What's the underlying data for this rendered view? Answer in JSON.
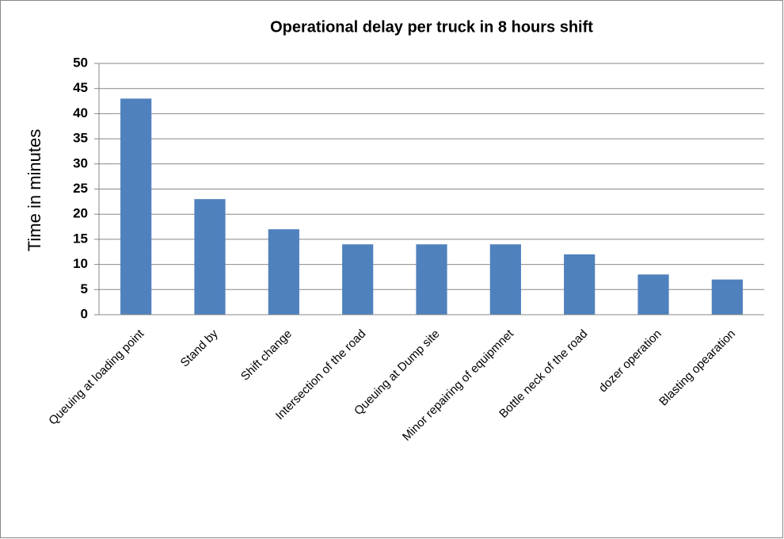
{
  "chart_data": {
    "type": "bar",
    "title": "Operational delay per truck in 8 hours shift",
    "y_label": "Time in minutes",
    "categories": [
      "Queuing at loading point",
      "Stand by",
      "Shift change",
      "Intersection of the road",
      "Queuing at Dump site",
      "Minor repairing of equipmnet",
      "Bottle neck of the road",
      "dozer operation",
      "Blasting opearation"
    ],
    "values": [
      43,
      23,
      17,
      14,
      14,
      14,
      12,
      8,
      7
    ],
    "color": "#4f81bd",
    "ylim": [
      0,
      50
    ],
    "yticks": [
      0,
      5,
      10,
      15,
      20,
      25,
      30,
      35,
      40,
      45,
      50
    ],
    "grid": true
  }
}
